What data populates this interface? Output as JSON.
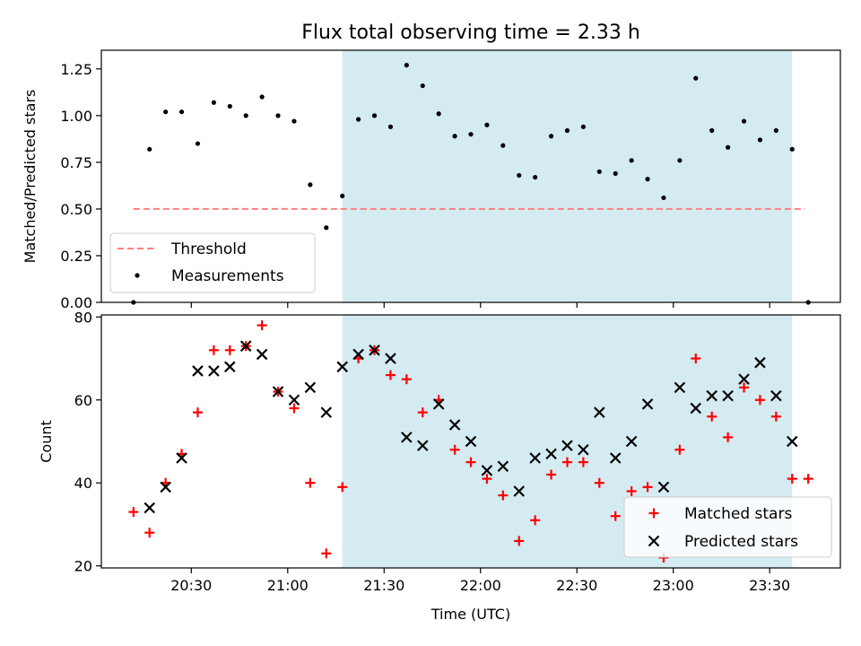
{
  "title": "Flux total observing time = 2.33 h",
  "colors": {
    "shade": "#add8e6",
    "threshold": "#ff7f7f",
    "measurement": "#000000",
    "matched": "#ff0000",
    "predicted": "#000000"
  },
  "chart_data": [
    {
      "type": "scatter",
      "ylabel": "Matched/Predicted stars",
      "ylim": [
        0,
        1.35
      ],
      "yticks": [
        "0.00",
        "0.25",
        "0.50",
        "0.75",
        "1.00",
        "1.25"
      ],
      "shaded_region": {
        "x_start": "21:17",
        "x_end": "23:37"
      },
      "threshold": {
        "name": "Threshold",
        "value": 0.5,
        "x_start": "20:12",
        "x_end": "23:41"
      },
      "legend": [
        "Threshold",
        "Measurements"
      ],
      "legend_position": "lower-left",
      "series": [
        {
          "name": "Measurements",
          "x": [
            "20:12",
            "20:17",
            "20:22",
            "20:27",
            "20:32",
            "20:37",
            "20:42",
            "20:47",
            "20:52",
            "20:57",
            "21:02",
            "21:07",
            "21:12",
            "21:17",
            "21:22",
            "21:27",
            "21:32",
            "21:37",
            "21:42",
            "21:47",
            "21:52",
            "21:57",
            "22:02",
            "22:07",
            "22:12",
            "22:17",
            "22:22",
            "22:27",
            "22:32",
            "22:37",
            "22:42",
            "22:47",
            "22:52",
            "22:57",
            "23:02",
            "23:07",
            "23:12",
            "23:17",
            "23:22",
            "23:27",
            "23:32",
            "23:37",
            "23:42"
          ],
          "y": [
            0.0,
            0.82,
            1.02,
            1.02,
            0.85,
            1.07,
            1.05,
            1.0,
            1.1,
            1.0,
            0.97,
            0.63,
            0.4,
            0.57,
            0.98,
            1.0,
            0.94,
            1.27,
            1.16,
            1.01,
            0.89,
            0.9,
            0.95,
            0.84,
            0.68,
            0.67,
            0.89,
            0.92,
            0.94,
            0.7,
            0.69,
            0.76,
            0.66,
            0.56,
            0.76,
            1.2,
            0.92,
            0.83,
            0.97,
            0.87,
            0.92,
            0.82,
            0.0
          ]
        }
      ]
    },
    {
      "type": "scatter",
      "xlabel": "Time (UTC)",
      "ylabel": "Count",
      "ylim": [
        19.5,
        80.5
      ],
      "yticks": [
        "20",
        "40",
        "60",
        "80"
      ],
      "xticks": [
        "20:30",
        "21:00",
        "21:30",
        "22:00",
        "22:30",
        "23:00",
        "23:30"
      ],
      "shaded_region": {
        "x_start": "21:17",
        "x_end": "23:37"
      },
      "legend": [
        "Matched stars",
        "Predicted stars"
      ],
      "legend_position": "lower-right",
      "series": [
        {
          "name": "Matched stars",
          "x": [
            "20:12",
            "20:17",
            "20:22",
            "20:27",
            "20:32",
            "20:37",
            "20:42",
            "20:47",
            "20:52",
            "20:57",
            "21:02",
            "21:07",
            "21:12",
            "21:17",
            "21:22",
            "21:27",
            "21:32",
            "21:37",
            "21:42",
            "21:47",
            "21:52",
            "21:57",
            "22:02",
            "22:07",
            "22:12",
            "22:17",
            "22:22",
            "22:27",
            "22:32",
            "22:37",
            "22:42",
            "22:47",
            "22:52",
            "22:57",
            "23:02",
            "23:07",
            "23:12",
            "23:17",
            "23:22",
            "23:27",
            "23:32",
            "23:37",
            "23:42"
          ],
          "y": [
            33,
            28,
            40,
            47,
            57,
            72,
            72,
            73,
            78,
            62,
            58,
            40,
            23,
            39,
            70,
            72,
            66,
            65,
            57,
            60,
            48,
            45,
            41,
            37,
            26,
            31,
            42,
            45,
            45,
            40,
            32,
            38,
            39,
            22,
            48,
            70,
            56,
            51,
            63,
            60,
            56,
            41,
            41
          ]
        },
        {
          "name": "Predicted stars",
          "x": [
            "20:17",
            "20:22",
            "20:27",
            "20:32",
            "20:37",
            "20:42",
            "20:47",
            "20:52",
            "20:57",
            "21:02",
            "21:07",
            "21:12",
            "21:17",
            "21:22",
            "21:27",
            "21:32",
            "21:37",
            "21:42",
            "21:47",
            "21:52",
            "21:57",
            "22:02",
            "22:07",
            "22:12",
            "22:17",
            "22:22",
            "22:27",
            "22:32",
            "22:37",
            "22:42",
            "22:47",
            "22:52",
            "22:57",
            "23:02",
            "23:07",
            "23:12",
            "23:17",
            "23:22",
            "23:27",
            "23:32",
            "23:37"
          ],
          "y": [
            34,
            39,
            46,
            67,
            67,
            68,
            73,
            71,
            62,
            60,
            63,
            57,
            68,
            71,
            72,
            70,
            51,
            49,
            59,
            54,
            50,
            43,
            44,
            38,
            46,
            47,
            49,
            48,
            57,
            46,
            50,
            59,
            39,
            63,
            58,
            61,
            61,
            65,
            69,
            61,
            50
          ]
        }
      ]
    }
  ]
}
